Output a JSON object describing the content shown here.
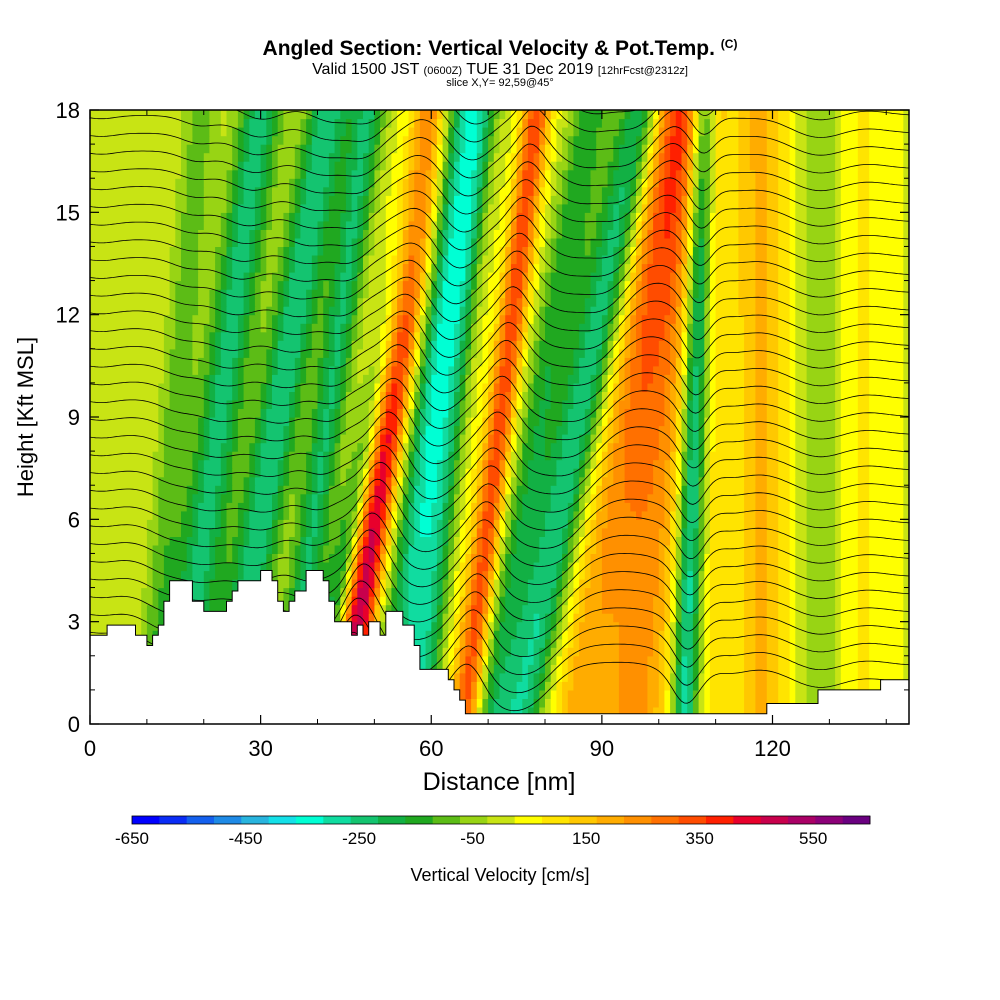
{
  "title": {
    "main": "Angled Section: Vertical Velocity & Pot.Temp.",
    "mark": "(C)",
    "valid_prefix": "Valid 1500 JST",
    "valid_utc": "(0600Z)",
    "valid_date": "TUE 31 Dec 2019",
    "forecast": "[12hrFcst@2312z]",
    "slice": "slice X,Y= 92,59@45°"
  },
  "chart_data": {
    "type": "heatmap",
    "xlabel": "Distance [nm]",
    "ylabel": "Height [Kft MSL]",
    "xlim": [
      0,
      144
    ],
    "ylim": [
      0,
      18
    ],
    "x_ticks": [
      "0",
      "30",
      "60",
      "90",
      "120"
    ],
    "x_tick_values": [
      0,
      30,
      60,
      90,
      120
    ],
    "y_ticks": [
      "0",
      "3",
      "6",
      "9",
      "12",
      "15",
      "18"
    ],
    "y_tick_values": [
      0,
      3,
      6,
      9,
      12,
      15,
      18
    ],
    "colorbar": {
      "label": "Vertical Velocity [cm/s]",
      "tick_labels": [
        "-650",
        "-450",
        "-250",
        "-50",
        "150",
        "350",
        "550"
      ],
      "tick_values": [
        -650,
        -450,
        -250,
        -50,
        150,
        350,
        550
      ],
      "range": [
        -650,
        650
      ],
      "colors": [
        "#0000ff",
        "#0a2cf6",
        "#1460ee",
        "#1e8ae6",
        "#28b4de",
        "#14e0e8",
        "#00ffd4",
        "#10dca0",
        "#14c470",
        "#12b044",
        "#20a820",
        "#5cbc16",
        "#98d414",
        "#c8e414",
        "#ffff00",
        "#ffe400",
        "#ffc800",
        "#ffac00",
        "#ff9000",
        "#ff7000",
        "#ff4c00",
        "#ff2000",
        "#e8002c",
        "#c8004c",
        "#aa0066",
        "#8c0078",
        "#6a0080"
      ]
    },
    "velocity_bands": [
      {
        "x_base": 2,
        "slope": 0.0,
        "width": 2.5,
        "w": -40
      },
      {
        "x_base": 12,
        "slope": 0.05,
        "width": 3,
        "w": -120
      },
      {
        "x_base": 18,
        "slope": 0.08,
        "width": 4,
        "w": -260
      },
      {
        "x_base": 27,
        "slope": 0.1,
        "width": 4,
        "w": -280
      },
      {
        "x_base": 37,
        "slope": 0.08,
        "width": 3,
        "w": -240
      },
      {
        "x_base": 43,
        "slope": 0.12,
        "width": 3,
        "w": -260
      },
      {
        "x_base": 47,
        "slope": 0.09,
        "width": 3.2,
        "w": 520
      },
      {
        "x_base": 53,
        "slope": 0.11,
        "width": 3,
        "w": -60
      },
      {
        "x_base": 58,
        "slope": 0.06,
        "width": 5,
        "w": -320
      },
      {
        "x_base": 64,
        "slope": 0.05,
        "width": 2.5,
        "w": 80
      },
      {
        "x_base": 68,
        "slope": 0.07,
        "width": 2.5,
        "w": 330
      },
      {
        "x_base": 73,
        "slope": 0.1,
        "width": 3.5,
        "w": -180
      },
      {
        "x_base": 79,
        "slope": 0.12,
        "width": 4,
        "w": -280
      },
      {
        "x_base": 88,
        "slope": 0.1,
        "width": 5,
        "w": 160
      },
      {
        "x_base": 97,
        "slope": 0.05,
        "width": 6,
        "w": 220
      },
      {
        "x_base": 105,
        "slope": 0.02,
        "width": 2.2,
        "w": -330
      },
      {
        "x_base": 110,
        "slope": 0.0,
        "width": 2.0,
        "w": 60
      },
      {
        "x_base": 118,
        "slope": 0.0,
        "width": 5,
        "w": 160
      },
      {
        "x_base": 128,
        "slope": 0.0,
        "width": 4,
        "w": -80
      },
      {
        "x_base": 136,
        "slope": 0.0,
        "width": 4,
        "w": 60
      }
    ],
    "terrain_kft": [
      [
        0,
        2.6
      ],
      [
        3,
        2.6
      ],
      [
        3,
        2.9
      ],
      [
        8,
        2.9
      ],
      [
        8,
        2.6
      ],
      [
        10,
        2.6
      ],
      [
        10,
        2.3
      ],
      [
        11,
        2.3
      ],
      [
        11,
        2.6
      ],
      [
        12,
        2.6
      ],
      [
        12,
        2.9
      ],
      [
        13,
        2.9
      ],
      [
        13,
        3.6
      ],
      [
        14,
        3.6
      ],
      [
        14,
        4.2
      ],
      [
        18,
        4.2
      ],
      [
        18,
        3.6
      ],
      [
        20,
        3.6
      ],
      [
        20,
        3.3
      ],
      [
        24,
        3.3
      ],
      [
        24,
        3.6
      ],
      [
        25,
        3.6
      ],
      [
        25,
        3.9
      ],
      [
        26,
        3.9
      ],
      [
        26,
        4.2
      ],
      [
        30,
        4.2
      ],
      [
        30,
        4.5
      ],
      [
        32,
        4.5
      ],
      [
        32,
        4.2
      ],
      [
        33,
        4.2
      ],
      [
        33,
        3.6
      ],
      [
        34,
        3.6
      ],
      [
        34,
        3.3
      ],
      [
        35,
        3.3
      ],
      [
        35,
        3.6
      ],
      [
        36,
        3.6
      ],
      [
        36,
        3.9
      ],
      [
        38,
        3.9
      ],
      [
        38,
        4.5
      ],
      [
        41,
        4.5
      ],
      [
        41,
        4.2
      ],
      [
        42,
        4.2
      ],
      [
        42,
        3.6
      ],
      [
        43,
        3.6
      ],
      [
        43,
        3.0
      ],
      [
        46,
        3.0
      ],
      [
        46,
        2.6
      ],
      [
        47,
        2.6
      ],
      [
        47,
        2.9
      ],
      [
        48,
        2.9
      ],
      [
        48,
        2.6
      ],
      [
        49,
        2.6
      ],
      [
        49,
        3.0
      ],
      [
        51,
        3.0
      ],
      [
        51,
        2.6
      ],
      [
        52,
        2.6
      ],
      [
        52,
        3.3
      ],
      [
        55,
        3.3
      ],
      [
        55,
        2.9
      ],
      [
        57,
        2.9
      ],
      [
        57,
        2.3
      ],
      [
        58,
        2.3
      ],
      [
        58,
        1.6
      ],
      [
        63,
        1.6
      ],
      [
        63,
        1.3
      ],
      [
        64,
        1.3
      ],
      [
        64,
        1.0
      ],
      [
        65,
        1.0
      ],
      [
        65,
        0.7
      ],
      [
        66,
        0.7
      ],
      [
        66,
        0.3
      ],
      [
        119,
        0.3
      ],
      [
        119,
        0.6
      ],
      [
        128,
        0.6
      ],
      [
        128,
        1.0
      ],
      [
        139,
        1.0
      ],
      [
        139,
        1.3
      ],
      [
        144,
        1.3
      ]
    ],
    "theta_contours": {
      "count": 34,
      "base_kft": 1.2,
      "spacing_kft": 0.52,
      "label_every": 4
    }
  }
}
